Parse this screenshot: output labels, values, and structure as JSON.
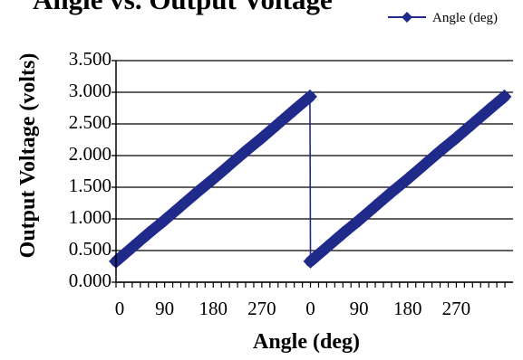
{
  "chart_data": {
    "type": "line",
    "title": "Angle vs. Output Voltage",
    "xlabel": "Angle (deg)",
    "ylabel": "Output Voltage (volts)",
    "legend": {
      "position": "top-right",
      "entries": [
        "Angle (deg)"
      ]
    },
    "grid": {
      "y": true,
      "x": false
    },
    "ylim": [
      0,
      3.5
    ],
    "y_ticks": [
      "0.000",
      "0.500",
      "1.000",
      "1.500",
      "2.000",
      "2.500",
      "3.000",
      "3.500"
    ],
    "x_tick_labels": [
      "0",
      "90",
      "180",
      "270",
      "0",
      "90",
      "180",
      "270"
    ],
    "series": [
      {
        "name": "Angle (deg)",
        "color": "#1f2a8a",
        "marker": "diamond",
        "x": [
          0,
          30,
          60,
          90,
          120,
          150,
          180,
          210,
          240,
          270,
          300,
          330,
          359,
          360,
          390,
          420,
          450,
          480,
          510,
          540,
          570,
          600,
          630,
          660,
          690,
          719
        ],
        "y": [
          0.33,
          0.55,
          0.77,
          0.98,
          1.2,
          1.42,
          1.63,
          1.85,
          2.07,
          2.28,
          2.5,
          2.72,
          2.93,
          0.33,
          0.55,
          0.77,
          0.98,
          1.2,
          1.42,
          1.63,
          1.85,
          2.07,
          2.28,
          2.5,
          2.72,
          2.93
        ]
      }
    ]
  }
}
